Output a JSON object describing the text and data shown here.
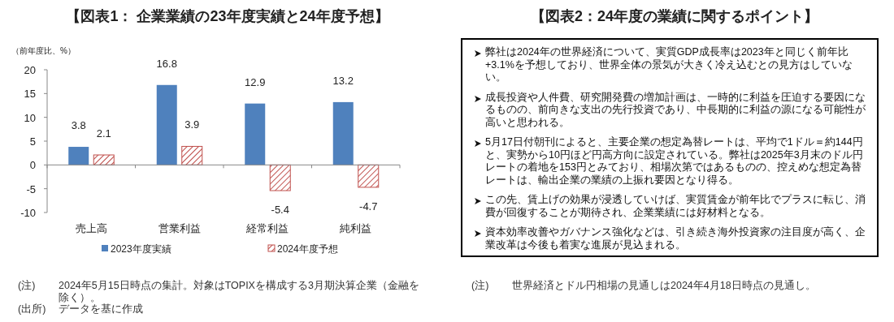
{
  "chart_data": [
    {
      "type": "bar",
      "title": "【図表1： 企業業績の23年度実績と24年度予想】",
      "ylabel": "（前年度比、%）",
      "categories": [
        "売上高",
        "営業利益",
        "経常利益",
        "純利益"
      ],
      "series": [
        {
          "name": "2023年度実績",
          "color": "#4f81bd",
          "values": [
            3.8,
            16.8,
            12.9,
            13.2
          ]
        },
        {
          "name": "2024年度予想",
          "color": "#c0504d",
          "values": [
            2.1,
            3.9,
            -5.4,
            -4.7
          ]
        }
      ],
      "ylim": [
        -10,
        20
      ],
      "yticks": [
        -10,
        -5,
        0,
        5,
        10,
        15,
        20
      ],
      "data_labels": true,
      "legend": "bottom",
      "annotations": [
        "(注) 2024年5月15日時点の集計。対象はTOPIXを構成する3月期決算企業（金融を除く）。",
        "(出所) データを基に作成"
      ]
    },
    {
      "type": "other",
      "title": "【図表2：24年度の業績に関するポイント】",
      "annotations": [
        "弊社は2024年の世界経済について、実質GDP成長率は2023年と同じく前年比+3.1%を予想しており、世界全体の景気が大きく冷え込むとの見方はしていない。",
        "成長投資や人件費、研究開発費の増加計画は、一時的に利益を圧迫する要因になるものの、前向きな支出の先行投資であり、中長期的に利益の源になる可能性が高いと思われる。",
        "5月17日付朝刊によると、主要企業の想定為替レートは、平均で1ドル＝約144円と、実勢から10円ほど円高方向に設定されている。弊社は2025年3月末のドル円レートの着地を153円とみており、相場次第ではあるものの、控えめな想定為替レートは、輸出企業の業績の上振れ要因となり得る。",
        "この先、賃上げの効果が浸透していけば、実質賃金が前年比でプラスに転じ、消費が回復することが期待され、企業業績には好材料となる。",
        "資本効率改善やガバナンス強化などは、引き続き海外投資家の注目度が高く、企業改革は今後も着実な進展が見込まれる。",
        "(注) 世界経済とドル円相場の見通しは2024年4月18日時点の見通し。"
      ]
    }
  ]
}
